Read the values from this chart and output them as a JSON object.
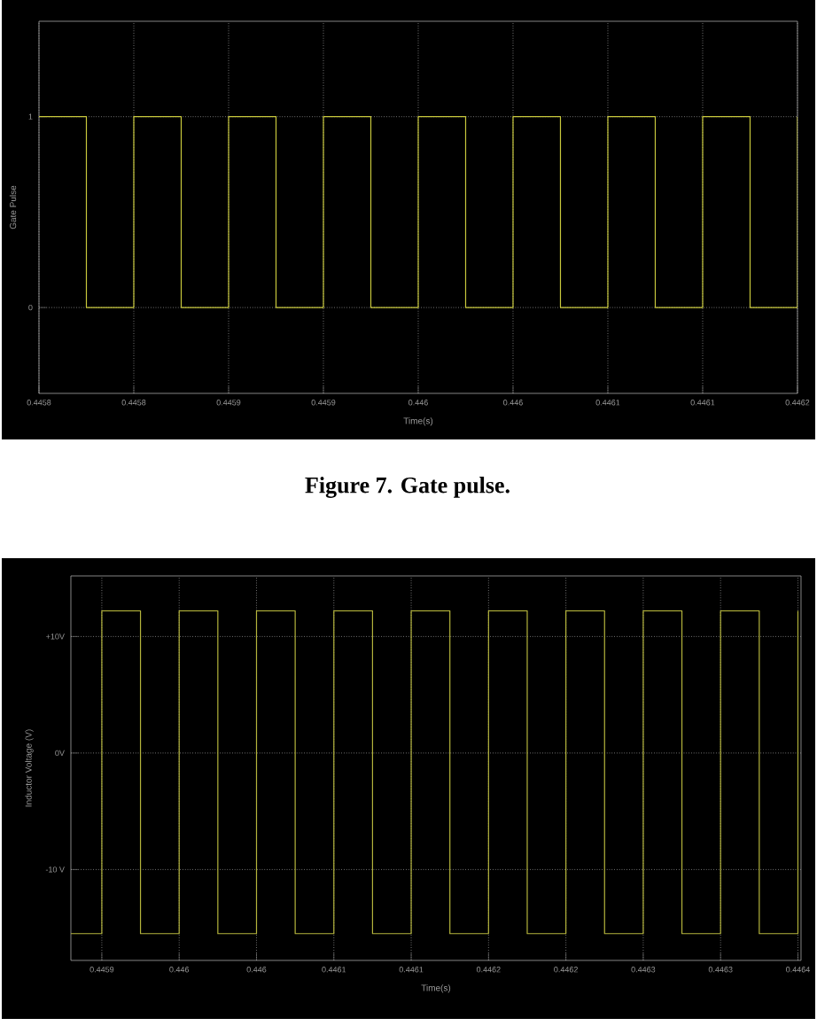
{
  "chart_data": [
    {
      "type": "step",
      "ylabel": "Gate Pulse",
      "xlabel": "Time(s)",
      "annotations": [
        "Figure 7.  Gate pulse."
      ],
      "series": [
        {
          "color": "#c8c83c",
          "x": [
            0.44578,
            0.445805,
            0.44583,
            0.445855,
            0.44588,
            0.445905,
            0.44593,
            0.445955,
            0.44598,
            0.446005,
            0.44603,
            0.446055,
            0.44608,
            0.446105,
            0.44613,
            0.446155,
            0.44618
          ],
          "values": [
            1,
            0,
            1,
            0,
            1,
            0,
            1,
            0,
            1,
            0,
            1,
            0,
            1,
            0,
            1,
            0,
            1
          ]
        }
      ],
      "xlim": [
        0.44578,
        0.44618
      ],
      "ylim": [
        -0.45,
        1.5
      ],
      "xticks": [
        {
          "value": 0.44578,
          "label": "0.4458"
        },
        {
          "value": 0.44583,
          "label": "0.4458"
        },
        {
          "value": 0.44588,
          "label": "0.4459"
        },
        {
          "value": 0.44593,
          "label": "0.4459"
        },
        {
          "value": 0.44598,
          "label": "0.446"
        },
        {
          "value": 0.44603,
          "label": "0.446"
        },
        {
          "value": 0.44608,
          "label": "0.4461"
        },
        {
          "value": 0.44613,
          "label": "0.4461"
        },
        {
          "value": 0.44618,
          "label": "0.4462"
        }
      ],
      "yticks": [
        0,
        1
      ],
      "grid": true,
      "line_style": "solid"
    },
    {
      "type": "step",
      "ylabel": "Inductor Voltage (V)",
      "xlabel": "Time(s)",
      "series": [
        {
          "color": "#b4b43c",
          "x": [
            0.44588,
            0.4459,
            0.445925,
            0.44595,
            0.445975,
            0.446,
            0.446025,
            0.44605,
            0.446075,
            0.4461,
            0.446125,
            0.44615,
            0.446175,
            0.4462,
            0.446225,
            0.44625,
            0.446275,
            0.4463,
            0.446325,
            0.44635
          ],
          "values": [
            -15.5,
            12.2,
            -15.5,
            12.2,
            -15.5,
            12.2,
            -15.5,
            12.2,
            -15.5,
            12.2,
            -15.5,
            12.2,
            -15.5,
            12.2,
            -15.5,
            12.2,
            -15.5,
            12.2,
            -15.5,
            12.2
          ]
        }
      ],
      "xlim": [
        0.44588,
        0.446352
      ],
      "ylim": [
        -17.8,
        15.2
      ],
      "xticks": [
        {
          "value": 0.4459,
          "label": "0.4459"
        },
        {
          "value": 0.44595,
          "label": "0.446"
        },
        {
          "value": 0.446,
          "label": "0.446"
        },
        {
          "value": 0.44605,
          "label": "0.4461"
        },
        {
          "value": 0.4461,
          "label": "0.4461"
        },
        {
          "value": 0.44615,
          "label": "0.4462"
        },
        {
          "value": 0.4462,
          "label": "0.4462"
        },
        {
          "value": 0.44625,
          "label": "0.4463"
        },
        {
          "value": 0.4463,
          "label": "0.4463"
        },
        {
          "value": 0.44635,
          "label": "0.4464"
        }
      ],
      "yticks": [
        {
          "value": 10,
          "label": "+10V"
        },
        {
          "value": 0,
          "label": "0V"
        },
        {
          "value": -10,
          "label": "-10 V"
        }
      ],
      "grid": true,
      "line_style": "solid"
    }
  ]
}
